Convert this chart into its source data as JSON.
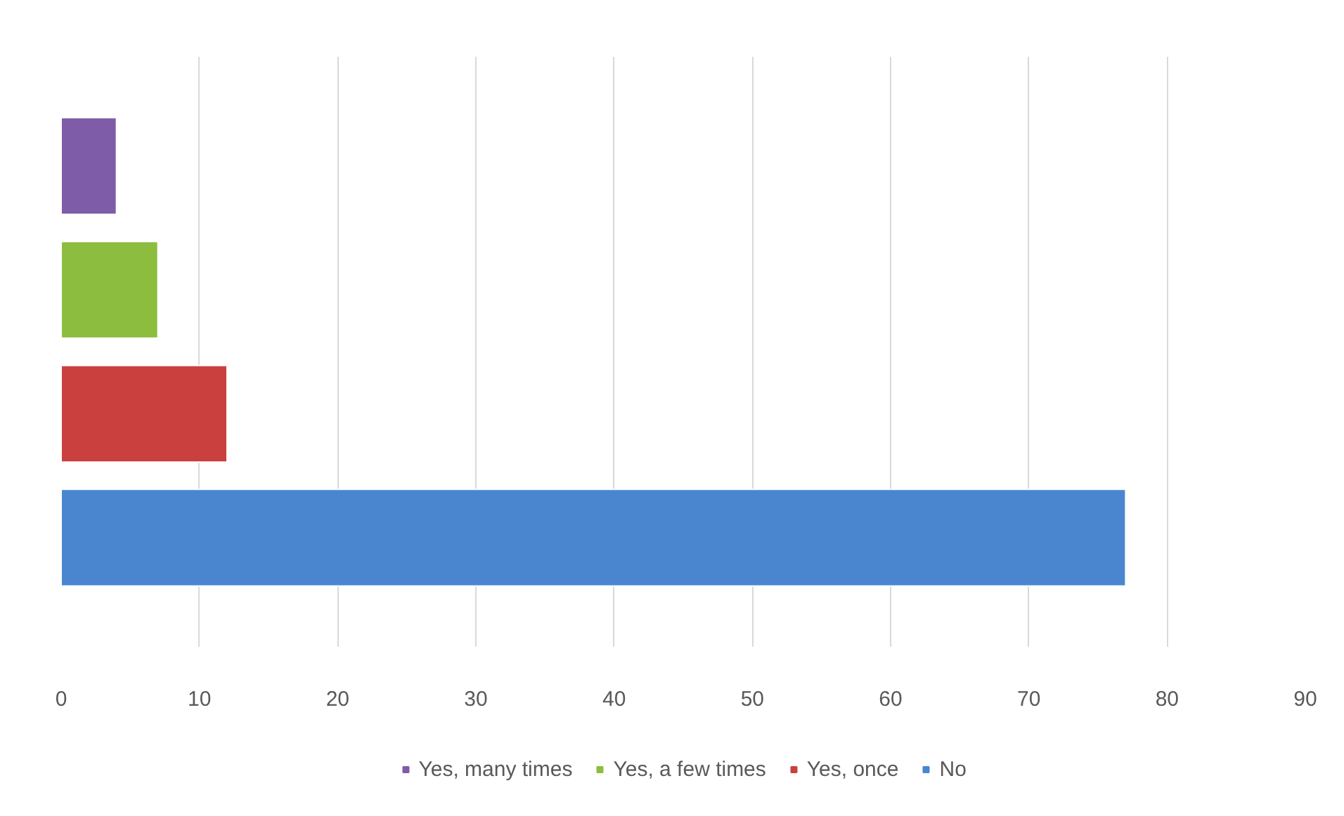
{
  "chart_data": {
    "type": "bar",
    "orientation": "horizontal",
    "categories": [
      null
    ],
    "series": [
      {
        "name": "Yes, many times",
        "color": "#7e5ca8",
        "values": [
          4
        ]
      },
      {
        "name": "Yes, a few times",
        "color": "#8cbd3f",
        "values": [
          7
        ]
      },
      {
        "name": "Yes, once",
        "color": "#c9403f",
        "values": [
          12
        ]
      },
      {
        "name": "No",
        "color": "#4a86d0",
        "values": [
          77
        ]
      }
    ],
    "xlim": [
      0,
      90
    ],
    "xticks": [
      0,
      10,
      20,
      30,
      40,
      50,
      60,
      70,
      80,
      90
    ],
    "grid": "x",
    "legend": "bottom"
  }
}
